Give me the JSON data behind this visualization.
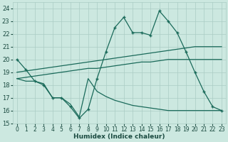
{
  "xlabel": "Humidex (Indice chaleur)",
  "bg_color": "#cce8e0",
  "grid_color": "#aaccc4",
  "line_color": "#1a6a5a",
  "xlim": [
    -0.5,
    23.5
  ],
  "ylim": [
    15,
    24.5
  ],
  "yticks": [
    15,
    16,
    17,
    18,
    19,
    20,
    21,
    22,
    23,
    24
  ],
  "xticks": [
    0,
    1,
    2,
    3,
    4,
    5,
    6,
    7,
    8,
    9,
    10,
    11,
    12,
    13,
    14,
    15,
    16,
    17,
    18,
    19,
    20,
    21,
    22,
    23
  ],
  "line1_x": [
    0,
    1,
    2,
    3,
    4,
    5,
    6,
    7,
    8,
    9,
    10,
    11,
    12,
    13,
    14,
    15,
    16,
    17,
    18,
    19,
    20,
    21,
    22,
    23
  ],
  "line1_y": [
    20.0,
    19.2,
    18.3,
    18.0,
    17.0,
    17.0,
    16.3,
    15.4,
    16.1,
    18.5,
    20.6,
    22.5,
    23.3,
    22.1,
    22.1,
    21.9,
    23.8,
    23.0,
    22.1,
    20.6,
    19.0,
    17.5,
    16.3,
    16.0
  ],
  "line2_x": [
    0,
    1,
    2,
    3,
    4,
    5,
    6,
    7,
    8,
    9,
    10,
    11,
    12,
    13,
    14,
    15,
    16,
    17,
    18,
    19,
    20,
    21,
    22,
    23
  ],
  "line2_y": [
    19.0,
    19.1,
    19.2,
    19.3,
    19.4,
    19.5,
    19.6,
    19.7,
    19.8,
    19.9,
    20.0,
    20.1,
    20.2,
    20.3,
    20.4,
    20.5,
    20.6,
    20.7,
    20.8,
    20.9,
    21.0,
    21.0,
    21.0,
    21.0
  ],
  "line3_x": [
    0,
    1,
    2,
    3,
    4,
    5,
    6,
    7,
    8,
    9,
    10,
    11,
    12,
    13,
    14,
    15,
    16,
    17,
    18,
    19,
    20,
    21,
    22,
    23
  ],
  "line3_y": [
    18.5,
    18.6,
    18.7,
    18.8,
    18.9,
    19.0,
    19.1,
    19.2,
    19.3,
    19.3,
    19.4,
    19.5,
    19.6,
    19.7,
    19.8,
    19.8,
    19.9,
    20.0,
    20.0,
    20.0,
    20.0,
    20.0,
    20.0,
    20.0
  ],
  "line4_x": [
    0,
    1,
    2,
    3,
    4,
    5,
    6,
    7,
    8,
    9,
    10,
    11,
    12,
    13,
    14,
    15,
    16,
    17,
    18,
    19,
    20,
    21,
    22,
    23
  ],
  "line4_y": [
    18.5,
    18.3,
    18.3,
    18.1,
    17.0,
    17.0,
    16.5,
    15.5,
    18.5,
    17.5,
    17.1,
    16.8,
    16.6,
    16.4,
    16.3,
    16.2,
    16.1,
    16.0,
    16.0,
    16.0,
    16.0,
    16.0,
    16.0,
    16.0
  ]
}
